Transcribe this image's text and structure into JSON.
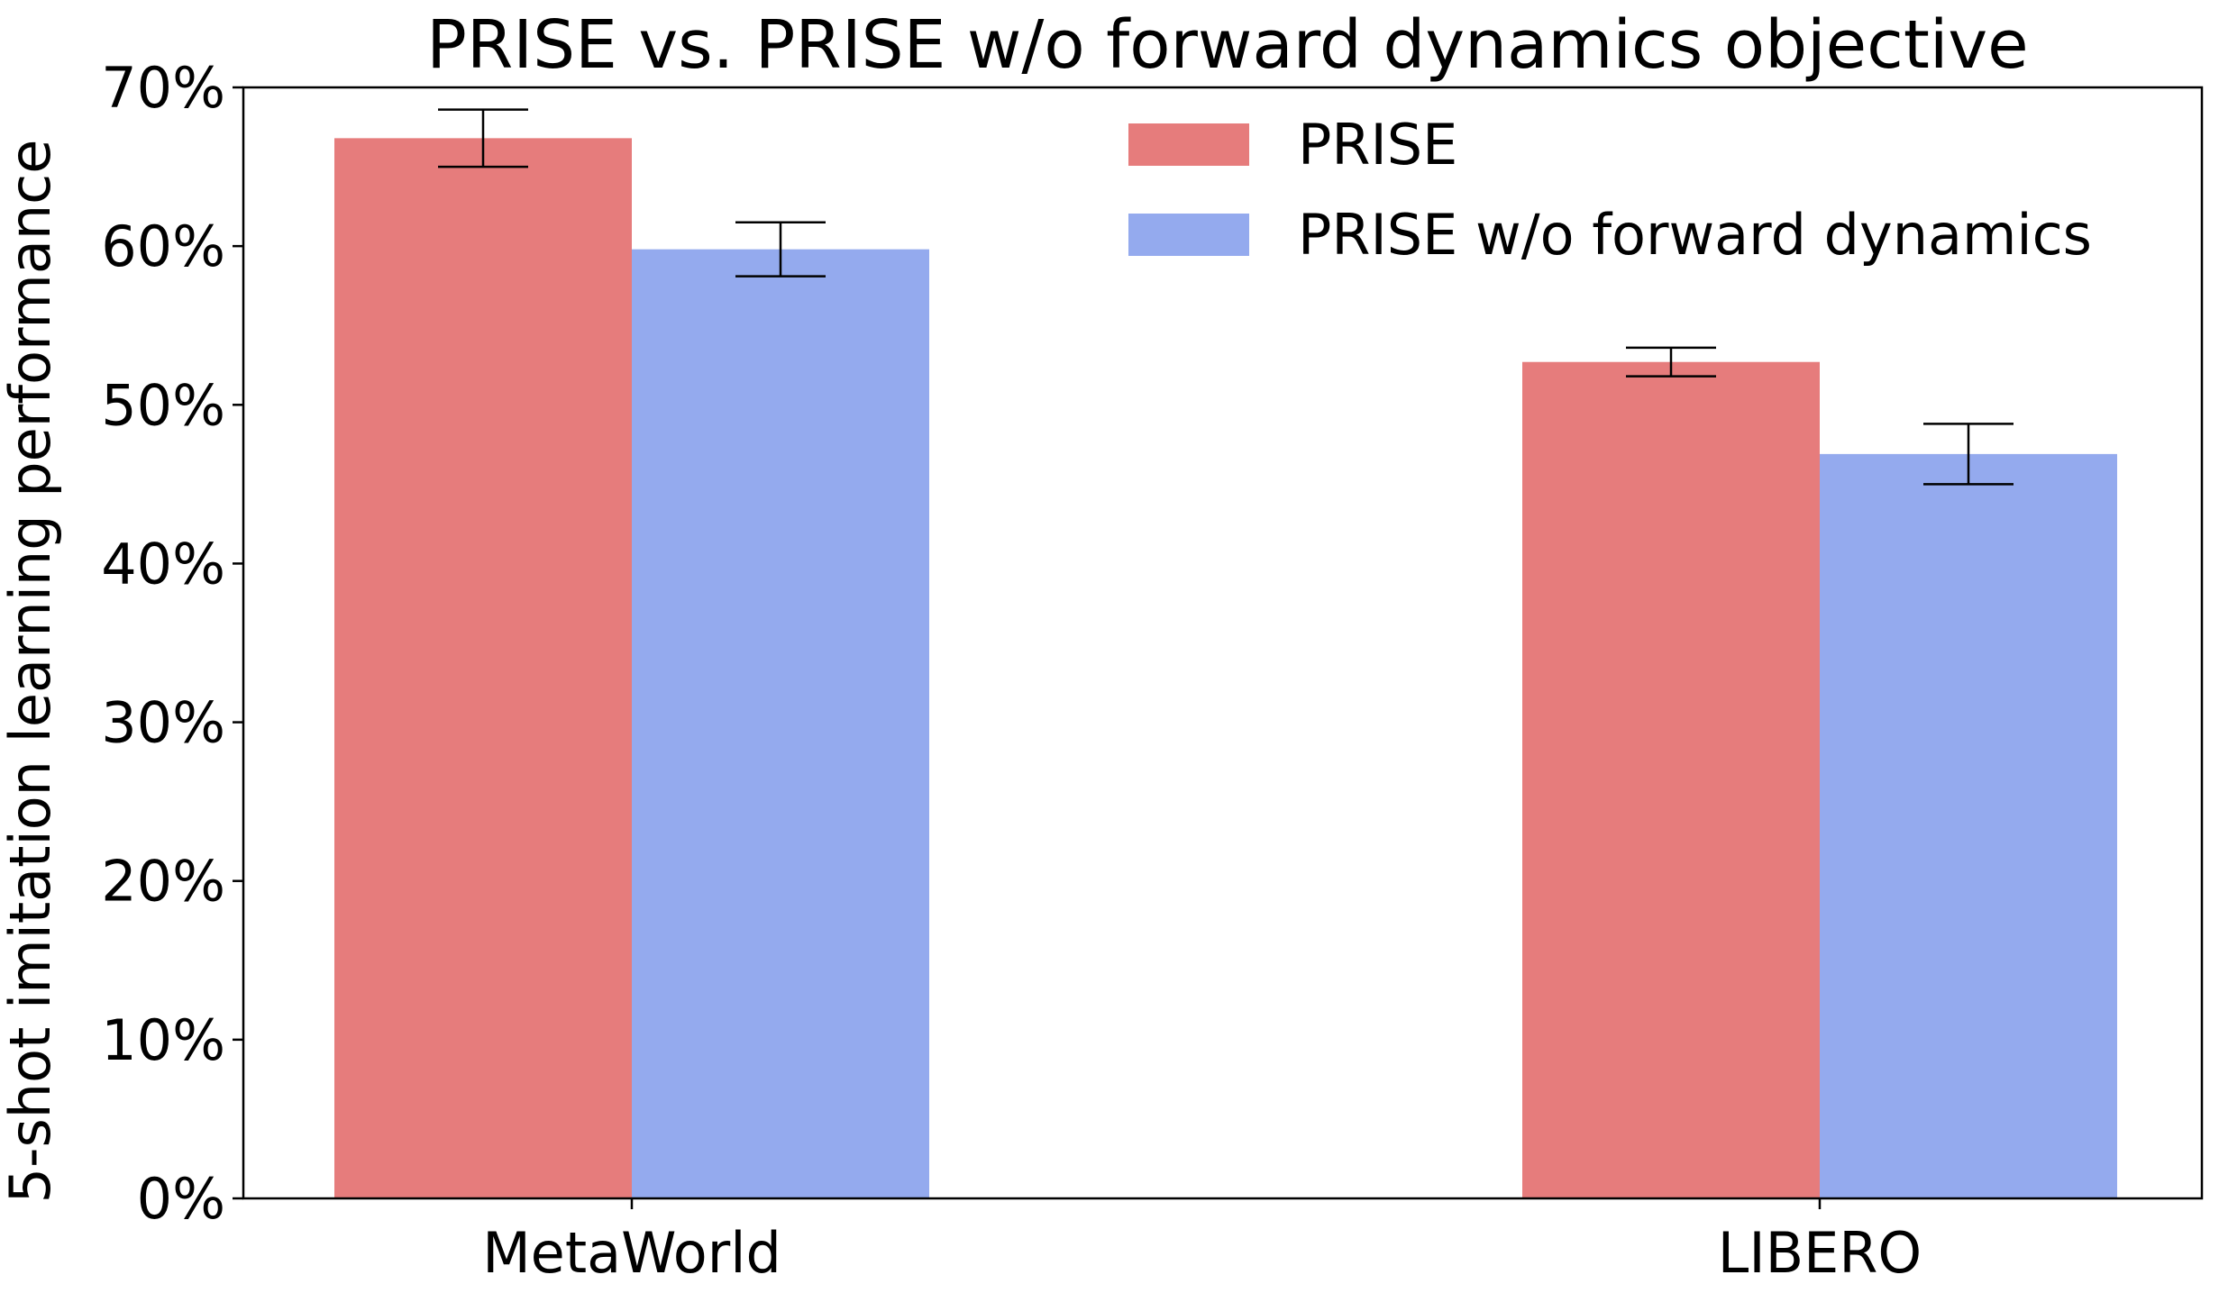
{
  "chart_data": {
    "type": "bar",
    "title": "PRISE vs. PRISE w/o forward dynamics objective",
    "xlabel": "",
    "ylabel": "5-shot imitation learning performance",
    "categories": [
      "MetaWorld",
      "LIBERO"
    ],
    "series": [
      {
        "name": "PRISE",
        "color": "#e67c7c",
        "values": [
          66.8,
          52.7
        ],
        "errors": [
          1.8,
          0.9
        ]
      },
      {
        "name": "PRISE w/o forward dynamics",
        "color": "#94aaee",
        "values": [
          59.8,
          46.9
        ],
        "errors": [
          1.7,
          1.9
        ]
      }
    ],
    "ylim": [
      0,
      70
    ],
    "yticks": [
      0,
      10,
      20,
      30,
      40,
      50,
      60,
      70
    ],
    "ytick_labels": [
      "0%",
      "10%",
      "20%",
      "30%",
      "40%",
      "50%",
      "60%",
      "70%"
    ],
    "grid": false,
    "legend_position": "top-right"
  }
}
